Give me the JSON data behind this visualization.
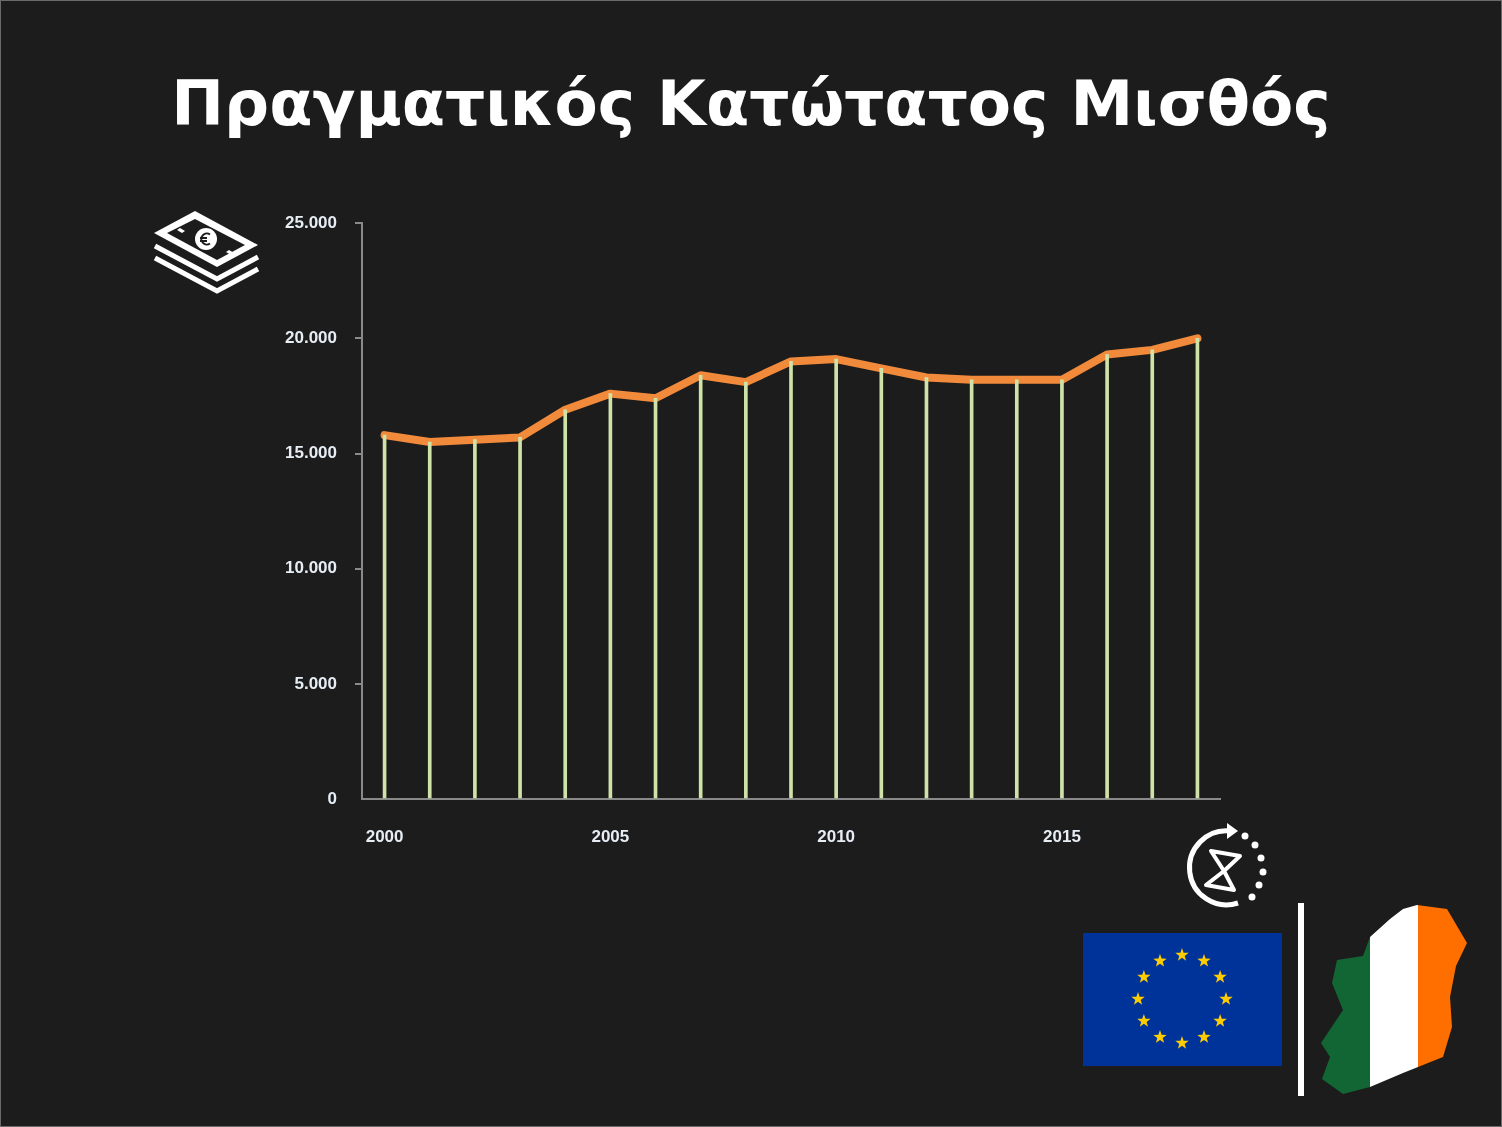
{
  "chart_data": {
    "type": "line",
    "title": "Πραγματικός Κατώτατος Μισθός",
    "x": [
      2000,
      2001,
      2002,
      2003,
      2004,
      2005,
      2006,
      2007,
      2008,
      2009,
      2010,
      2011,
      2012,
      2013,
      2014,
      2015,
      2016,
      2017,
      2018
    ],
    "xlim": [
      1999.5,
      2018.5
    ],
    "xticks": [
      2000,
      2005,
      2010,
      2015
    ],
    "ylim": [
      0,
      25000
    ],
    "yticks": [
      0,
      {
        "value": 5000,
        "label": "5.000"
      },
      {
        "value": 10000,
        "label": "10.000"
      },
      {
        "value": 15000,
        "label": "15.000"
      },
      {
        "value": 20000,
        "label": "20.000"
      },
      {
        "value": 25000,
        "label": "25.000"
      }
    ],
    "series": [
      {
        "type": "bar",
        "color": "#cfe3a8",
        "values": [
          15800,
          15500,
          15600,
          15700,
          16900,
          17600,
          17400,
          18400,
          18100,
          19000,
          19100,
          18700,
          18300,
          18200,
          18200,
          18200,
          19300,
          19500,
          20000
        ]
      },
      {
        "color": "#f28a3c",
        "values": [
          15800,
          15500,
          15600,
          15700,
          16900,
          17600,
          17400,
          18400,
          18100,
          19000,
          19100,
          18700,
          18300,
          18200,
          18200,
          18200,
          19300,
          19500,
          20000
        ]
      }
    ],
    "marker": "none"
  }
}
